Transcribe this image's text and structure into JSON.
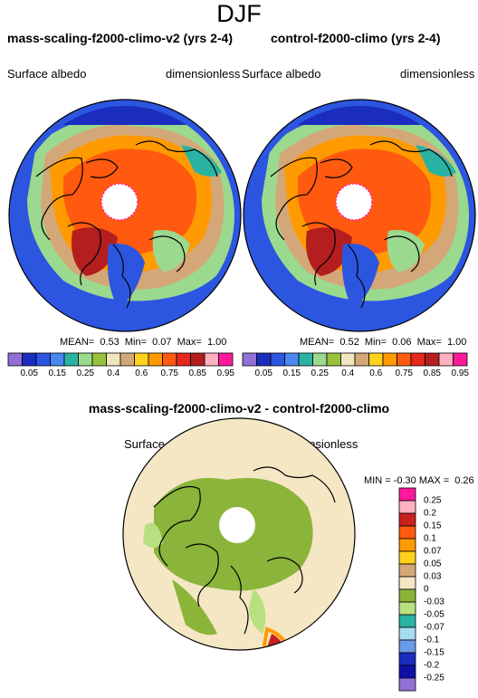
{
  "season": "DJF",
  "panels": [
    {
      "title": "mass-scaling-f2000-climo-v2 (yrs 2-4)",
      "variable": "Surface albedo",
      "units": "dimensionless",
      "stats": "MEAN=  0.53  Min=  0.07  Max=  1.00"
    },
    {
      "title": "control-f2000-climo (yrs 2-4)",
      "variable": "Surface albedo",
      "units": "dimensionless",
      "stats": "MEAN=  0.52  Min=  0.06  Max=  1.00"
    }
  ],
  "difference": {
    "title": "mass-scaling-f2000-climo-v2 - control-f2000-climo",
    "variable": "Surface albedo",
    "units": "dimensionless",
    "minmax": "MIN = -0.30 MAX =  0.26"
  },
  "colorbar_main": {
    "ticks": [
      "0.05",
      "0.15",
      "0.25",
      "0.4",
      "0.6",
      "0.75",
      "0.85",
      "0.95"
    ],
    "colors": [
      "#9370d8",
      "#1a2dbf",
      "#2c55e0",
      "#4b87f0",
      "#2ab3a3",
      "#9bd98f",
      "#99c23c",
      "#f0e6c0",
      "#d4a778",
      "#ffd21e",
      "#ff9a00",
      "#ff5a10",
      "#e6271c",
      "#b41e1e",
      "#ffb0c0",
      "#ff1a9c"
    ]
  },
  "colorbar_diff": {
    "ticks": [
      "0.25",
      "0.2",
      "0.15",
      "0.1",
      "0.07",
      "0.05",
      "0.03",
      "0",
      "-0.03",
      "-0.05",
      "-0.07",
      "-0.1",
      "-0.15",
      "-0.2",
      "-0.25"
    ],
    "colors": [
      "#ff1a9c",
      "#ffb0c0",
      "#c8201e",
      "#ff5a10",
      "#ff9a00",
      "#ffd21e",
      "#d4a778",
      "#f5e6c4",
      "#8ab43a",
      "#b8e080",
      "#2ab3a3",
      "#a8dcef",
      "#6a9ae8",
      "#1a2dbf",
      "#1010a8",
      "#9370d8"
    ]
  }
}
